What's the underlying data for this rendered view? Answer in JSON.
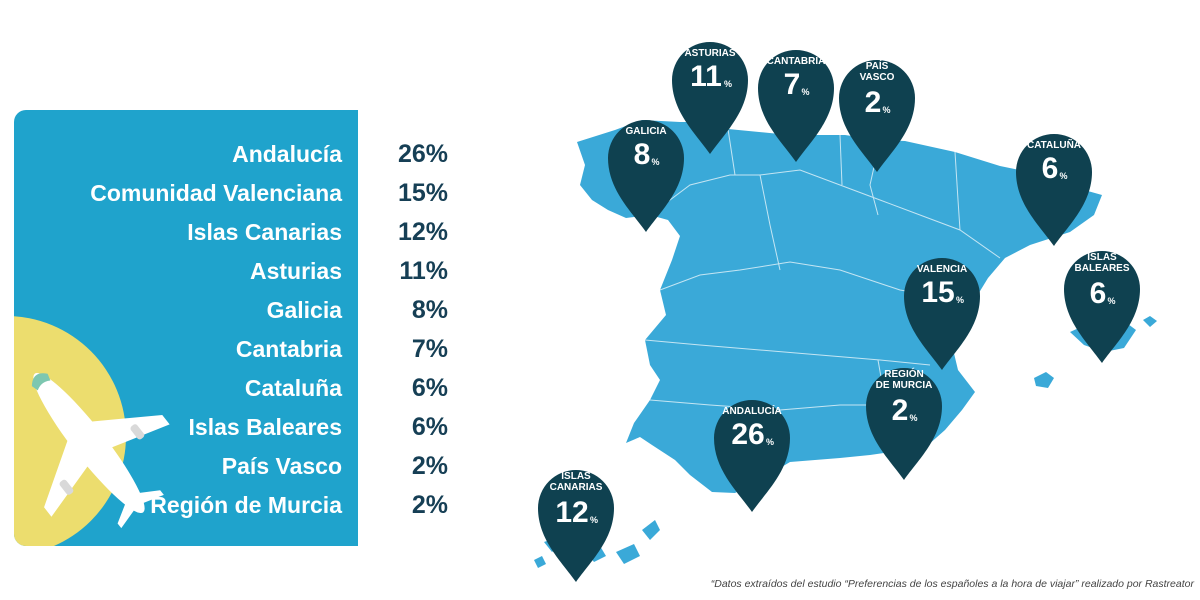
{
  "chart_data": {
    "type": "table",
    "title": "",
    "categories": [
      "Andalucía",
      "Comunidad Valenciana",
      "Islas Canarias",
      "Asturias",
      "Galicia",
      "Cantabria",
      "Cataluña",
      "Islas Baleares",
      "País Vasco",
      "Región de Murcia"
    ],
    "values": [
      "26%",
      "15%",
      "12%",
      "11%",
      "8%",
      "7%",
      "6%",
      "6%",
      "2%",
      "2%"
    ],
    "percent": [
      26,
      15,
      12,
      11,
      8,
      7,
      6,
      6,
      2,
      2
    ]
  },
  "map_pins": [
    {
      "lines": [
        "ASTURIAS"
      ],
      "value": "11",
      "unit": "%"
    },
    {
      "lines": [
        "CANTABRIA"
      ],
      "value": "7",
      "unit": "%"
    },
    {
      "lines": [
        "PAÍS",
        "VASCO"
      ],
      "value": "2",
      "unit": "%"
    },
    {
      "lines": [
        "GALICIA"
      ],
      "value": "8",
      "unit": "%"
    },
    {
      "lines": [
        "CATALUÑA"
      ],
      "value": "6",
      "unit": "%"
    },
    {
      "lines": [
        "VALENCIA"
      ],
      "value": "15",
      "unit": "%"
    },
    {
      "lines": [
        "ISLAS",
        "BALEARES"
      ],
      "value": "6",
      "unit": "%"
    },
    {
      "lines": [
        "REGIÓN",
        "DE MURCIA"
      ],
      "value": "2",
      "unit": "%"
    },
    {
      "lines": [
        "ANDALUCÍA"
      ],
      "value": "26",
      "unit": "%"
    },
    {
      "lines": [
        "ISLAS",
        "CANARIAS"
      ],
      "value": "12",
      "unit": "%"
    }
  ],
  "footnote": "“Datos extraídos del estudio “Preferencias de los españoles a la hora de viajar” realizado por Rastreator",
  "colors": {
    "panel": "#1fa3cc",
    "map": "#3aa9d8",
    "pin": "#0f4150",
    "value_text": "#163f55",
    "sun": "#ecdd6e"
  },
  "icons": {
    "plane": "airplane-icon",
    "pin": "map-pin-icon"
  }
}
